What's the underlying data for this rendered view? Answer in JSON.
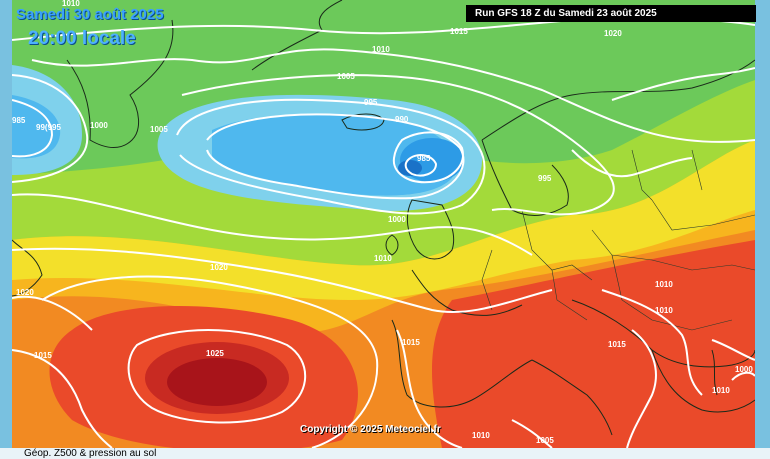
{
  "header": {
    "date_label": "Samedi 30 août 2025",
    "local_time": "20:00 locale",
    "run_label": "Run GFS 18 Z du Samedi 23 août 2025"
  },
  "copyright": "Copyright © 2025 Meteociel.fr",
  "footer_text": "Géop. Z500 & pression au sol",
  "isobar_labels": [
    "1010",
    "1015",
    "1020",
    "1010",
    "1005",
    "995",
    "990",
    "985",
    "995",
    "1005",
    "985",
    "99(995",
    "1000",
    "1000",
    "1010",
    "1020",
    "1020",
    "1015",
    "1025",
    "1015",
    "1010",
    "1010",
    "1015",
    "1010",
    "1010",
    "1005",
    "1000"
  ],
  "colors": {
    "frame": "#79c1e0",
    "low_blue": "#3aa8ec",
    "green": "#8fd44a",
    "yellow": "#f3e02a",
    "orange": "#f7921e",
    "red": "#ea4a2a",
    "deep_red": "#b8171c",
    "isobar": "#ffffff"
  }
}
